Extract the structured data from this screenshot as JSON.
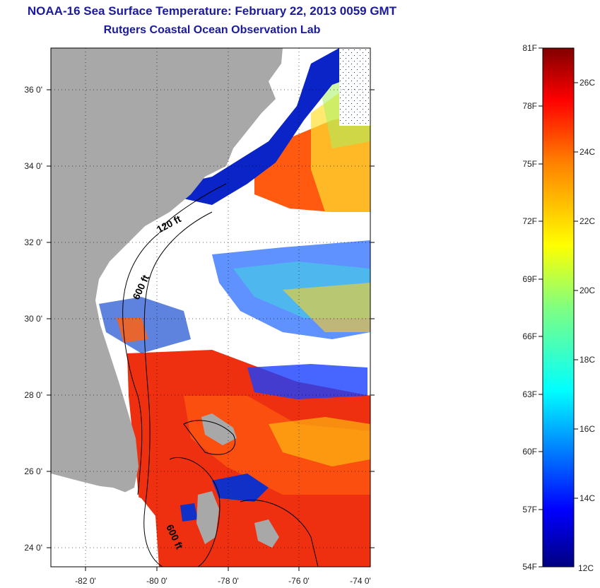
{
  "title": {
    "line1": "NOAA-16 Sea Surface Temperature:  February 22, 2013 0059 GMT",
    "line2": "Rutgers Coastal Ocean Observation Lab"
  },
  "map": {
    "lon_labels": [
      "-82 0'",
      "-80 0'",
      "-78 0'",
      "-76 0'",
      "-74 0'"
    ],
    "lat_labels": [
      "36 0'",
      "34 0'",
      "32 0'",
      "30 0'",
      "28 0'",
      "26 0'",
      "24 0'"
    ],
    "contour_labels": [
      "120 ft",
      "600 ft",
      "600 ft"
    ],
    "colors": {
      "land": "#a8a8a8",
      "cloud": "#ffffff",
      "contour": "#000000"
    }
  },
  "colorbar": {
    "fahrenheit_labels": [
      "81F",
      "78F",
      "75F",
      "72F",
      "69F",
      "66F",
      "63F",
      "60F",
      "57F",
      "54F"
    ],
    "celsius_labels": [
      "26C",
      "24C",
      "22C",
      "20C",
      "18C",
      "16C",
      "14C",
      "12C"
    ],
    "colormap": [
      "#000080",
      "#0000ff",
      "#0080ff",
      "#00ffff",
      "#80ff80",
      "#ffff00",
      "#ff8000",
      "#ff0000",
      "#800000"
    ]
  }
}
